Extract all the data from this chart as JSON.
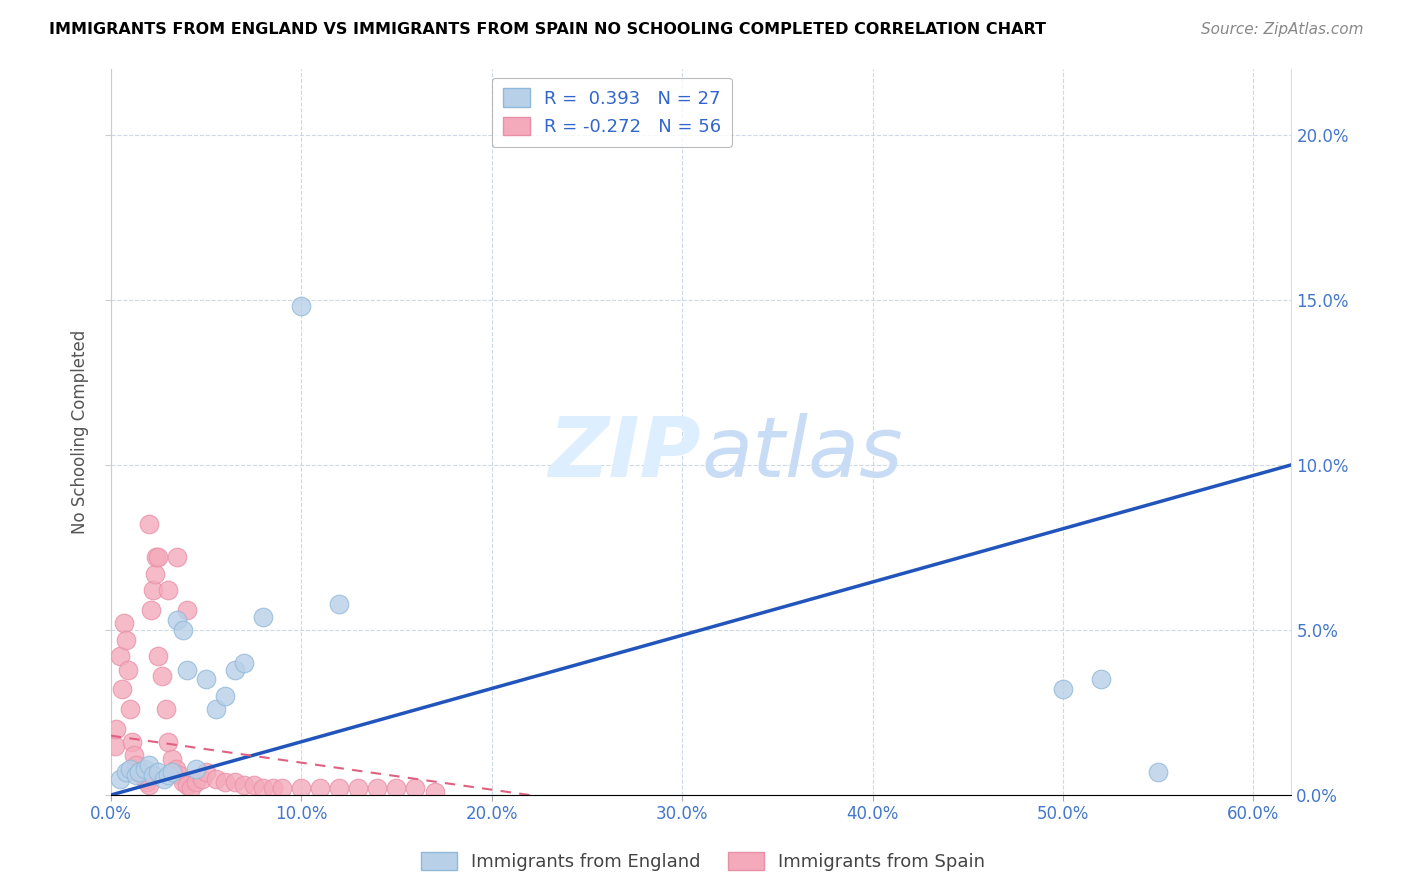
{
  "title": "IMMIGRANTS FROM ENGLAND VS IMMIGRANTS FROM SPAIN NO SCHOOLING COMPLETED CORRELATION CHART",
  "source": "Source: ZipAtlas.com",
  "ylabel": "No Schooling Completed",
  "xlim": [
    0.0,
    0.62
  ],
  "ylim": [
    0.0,
    0.22
  ],
  "xticks": [
    0.0,
    0.1,
    0.2,
    0.3,
    0.4,
    0.5,
    0.6
  ],
  "yticks": [
    0.0,
    0.05,
    0.1,
    0.15,
    0.2
  ],
  "england_R": 0.393,
  "england_N": 27,
  "spain_R": -0.272,
  "spain_N": 56,
  "england_color": "#b8d0e8",
  "spain_color": "#f4aabb",
  "england_edge_color": "#90b8d8",
  "spain_edge_color": "#e890a8",
  "england_line_color": "#2255bb",
  "spain_line_color": "#e06080",
  "watermark_color": "#ddeeff",
  "england_x": [
    0.005,
    0.008,
    0.01,
    0.013,
    0.015,
    0.018,
    0.02,
    0.022,
    0.025,
    0.028,
    0.03,
    0.032,
    0.035,
    0.038,
    0.04,
    0.045,
    0.05,
    0.055,
    0.06,
    0.065,
    0.07,
    0.08,
    0.1,
    0.12,
    0.52,
    0.55,
    0.5
  ],
  "england_y": [
    0.005,
    0.007,
    0.008,
    0.006,
    0.007,
    0.008,
    0.009,
    0.006,
    0.007,
    0.005,
    0.006,
    0.007,
    0.053,
    0.05,
    0.038,
    0.008,
    0.035,
    0.026,
    0.03,
    0.038,
    0.04,
    0.054,
    0.148,
    0.058,
    0.035,
    0.007,
    0.032
  ],
  "spain_x": [
    0.002,
    0.003,
    0.005,
    0.006,
    0.007,
    0.008,
    0.009,
    0.01,
    0.011,
    0.012,
    0.013,
    0.014,
    0.015,
    0.016,
    0.017,
    0.018,
    0.019,
    0.02,
    0.021,
    0.022,
    0.023,
    0.024,
    0.025,
    0.027,
    0.029,
    0.03,
    0.032,
    0.034,
    0.036,
    0.038,
    0.04,
    0.042,
    0.045,
    0.048,
    0.05,
    0.055,
    0.06,
    0.065,
    0.07,
    0.075,
    0.08,
    0.085,
    0.09,
    0.1,
    0.11,
    0.12,
    0.13,
    0.14,
    0.15,
    0.16,
    0.17,
    0.02,
    0.025,
    0.03,
    0.035,
    0.04
  ],
  "spain_y": [
    0.015,
    0.02,
    0.042,
    0.032,
    0.052,
    0.047,
    0.038,
    0.026,
    0.016,
    0.012,
    0.009,
    0.007,
    0.007,
    0.007,
    0.006,
    0.005,
    0.004,
    0.003,
    0.056,
    0.062,
    0.067,
    0.072,
    0.042,
    0.036,
    0.026,
    0.016,
    0.011,
    0.008,
    0.006,
    0.004,
    0.003,
    0.002,
    0.004,
    0.005,
    0.007,
    0.005,
    0.004,
    0.004,
    0.003,
    0.003,
    0.002,
    0.002,
    0.002,
    0.002,
    0.002,
    0.002,
    0.002,
    0.002,
    0.002,
    0.002,
    0.001,
    0.082,
    0.072,
    0.062,
    0.072,
    0.056
  ]
}
